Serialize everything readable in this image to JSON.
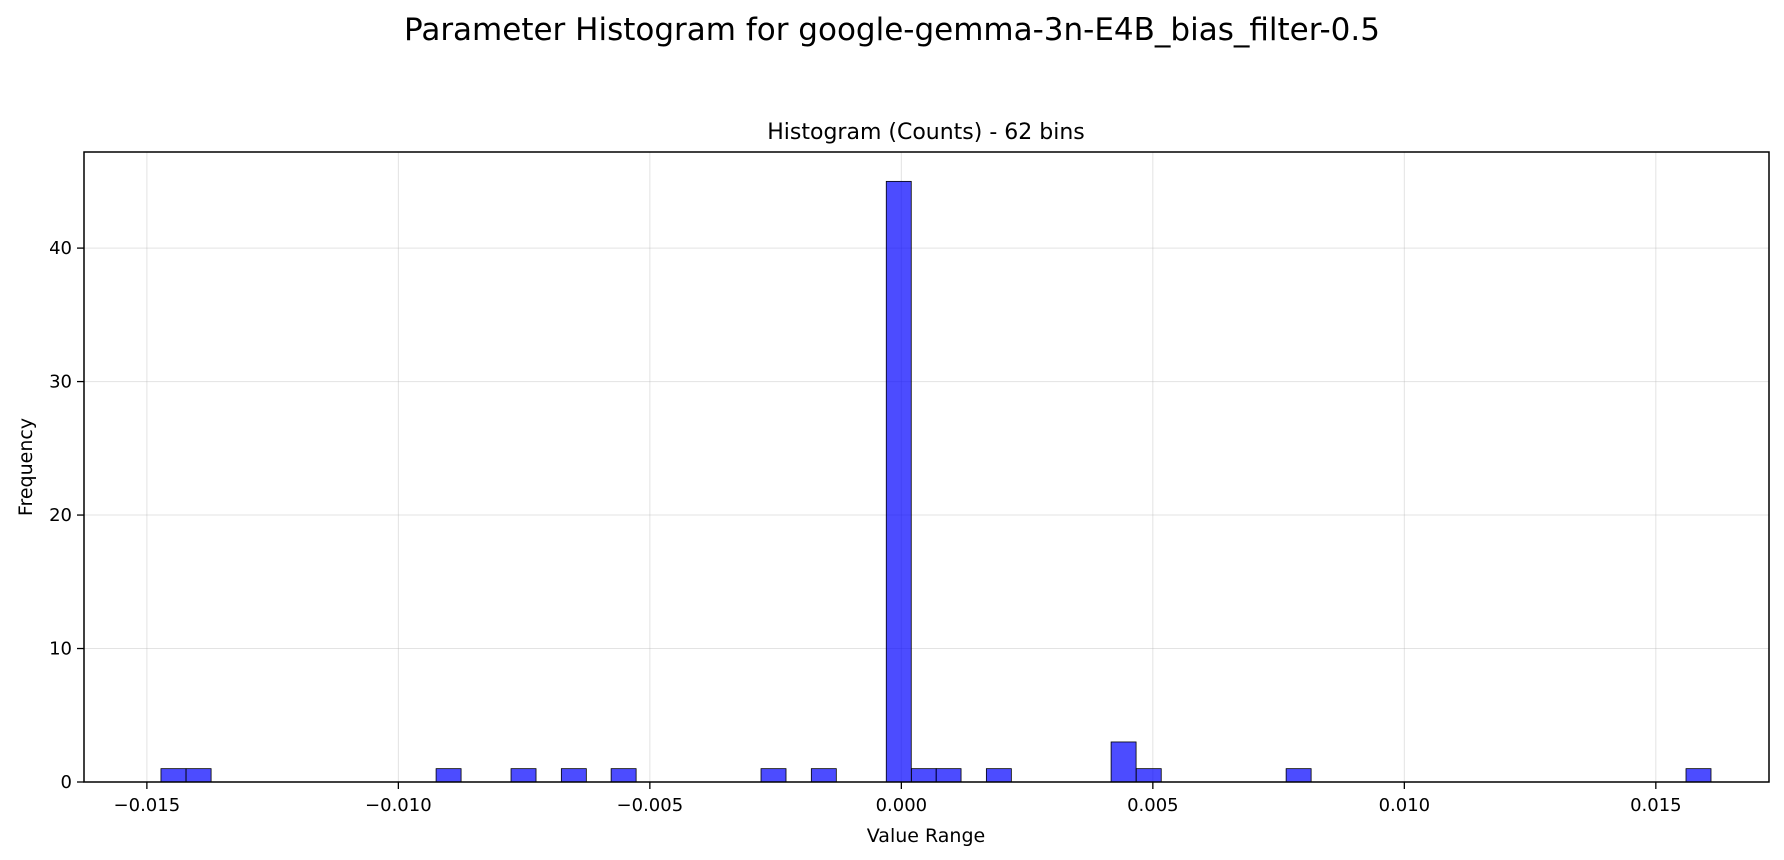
{
  "chart_data": {
    "type": "bar",
    "suptitle": "Parameter Histogram for google-gemma-3n-E4B_bias_filter-0.5",
    "title": "Histogram (Counts) - 62 bins",
    "xlabel": "Value Range",
    "ylabel": "Frequency",
    "xlim": [
      -0.01625,
      0.01725
    ],
    "ylim": [
      0,
      47.2
    ],
    "xticks": [
      -0.015,
      -0.01,
      -0.005,
      0.0,
      0.005,
      0.01,
      0.015
    ],
    "xtick_labels": [
      "−0.015",
      "−0.010",
      "−0.005",
      "0.000",
      "0.005",
      "0.010",
      "0.015"
    ],
    "yticks": [
      0,
      10,
      20,
      30,
      40
    ],
    "ytick_labels": [
      "0",
      "10",
      "20",
      "30",
      "40"
    ],
    "bin_width": 0.000497,
    "grid": true,
    "bar_color": "#0000ff",
    "bins": [
      {
        "x": -0.01472,
        "count": 1
      },
      {
        "x": -0.01422,
        "count": 1
      },
      {
        "x": -0.00925,
        "count": 1
      },
      {
        "x": -0.00776,
        "count": 1
      },
      {
        "x": -0.00676,
        "count": 1
      },
      {
        "x": -0.00577,
        "count": 1
      },
      {
        "x": -0.00279,
        "count": 1
      },
      {
        "x": -0.00179,
        "count": 1
      },
      {
        "x": -0.0003,
        "count": 45
      },
      {
        "x": 0.0002,
        "count": 1
      },
      {
        "x": 0.00069,
        "count": 1
      },
      {
        "x": 0.00169,
        "count": 1
      },
      {
        "x": 0.00417,
        "count": 3
      },
      {
        "x": 0.00467,
        "count": 1
      },
      {
        "x": 0.00765,
        "count": 1
      },
      {
        "x": 0.0156,
        "count": 1
      }
    ]
  }
}
